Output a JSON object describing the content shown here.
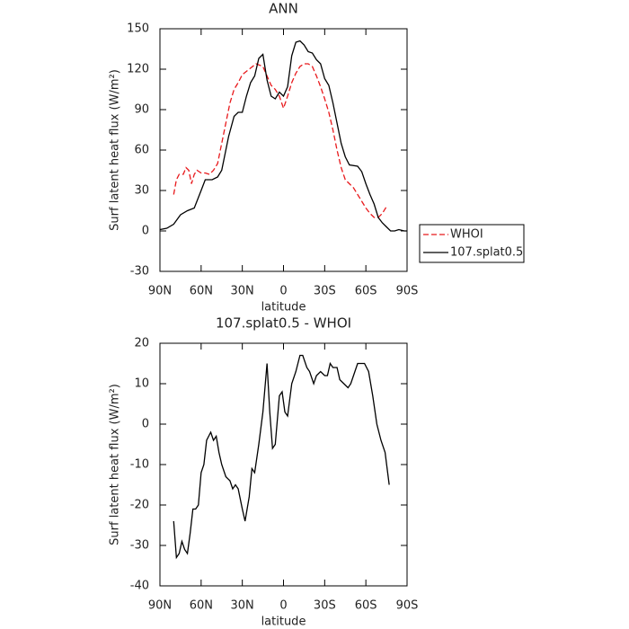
{
  "chart_data": [
    {
      "type": "line",
      "title": "ANN",
      "xlabel": "latitude",
      "ylabel": "Surf latent heat flux (W/m²)",
      "xlim": [
        90,
        -90
      ],
      "xticks": [
        {
          "value": 90,
          "label": "90N"
        },
        {
          "value": 60,
          "label": "60N"
        },
        {
          "value": 30,
          "label": "30N"
        },
        0,
        {
          "value": -30,
          "label": "30S"
        },
        {
          "value": -60,
          "label": "60S"
        },
        {
          "value": -90,
          "label": "90S"
        }
      ],
      "ylim": [
        -30,
        150
      ],
      "yticks": [
        -30,
        0,
        30,
        60,
        90,
        120,
        150
      ],
      "legend_position": "right",
      "series": [
        {
          "name": "WHOI",
          "color": "#e8191c",
          "linestyle": "dashed",
          "x": [
            80,
            78,
            76,
            73,
            71,
            69,
            67,
            65,
            63,
            60,
            57,
            54,
            51,
            48,
            45,
            42,
            39,
            36,
            33,
            30,
            25,
            20,
            15,
            12,
            9,
            6,
            3,
            0,
            -3,
            -6,
            -9,
            -12,
            -15,
            -18,
            -21,
            -24,
            -27,
            -30,
            -33,
            -36,
            -39,
            -42,
            -45,
            -48,
            -51,
            -54,
            -57,
            -60,
            -63,
            -66,
            -69,
            -72,
            -75
          ],
          "values": [
            27,
            38,
            42,
            42,
            47,
            45,
            35,
            42,
            45,
            43,
            43,
            42,
            45,
            50,
            65,
            80,
            95,
            105,
            110,
            116,
            120,
            124,
            122,
            115,
            108,
            105,
            100,
            91,
            100,
            110,
            117,
            122,
            124,
            124,
            122,
            115,
            107,
            98,
            88,
            75,
            60,
            47,
            38,
            35,
            32,
            27,
            22,
            17,
            13,
            10,
            10,
            13,
            18
          ]
        },
        {
          "name": "107.splat0.5",
          "color": "#000000",
          "linestyle": "solid",
          "x": [
            90,
            85,
            80,
            75,
            70,
            65,
            60,
            57,
            52,
            48,
            45,
            40,
            36,
            33,
            30,
            27,
            24,
            21,
            18,
            15,
            12,
            9,
            6,
            3,
            0,
            -3,
            -6,
            -9,
            -12,
            -15,
            -18,
            -21,
            -24,
            -27,
            -30,
            -33,
            -36,
            -39,
            -42,
            -45,
            -48,
            -54,
            -57,
            -60,
            -63,
            -66,
            -69,
            -72,
            -75,
            -78,
            -81,
            -84,
            -88,
            -90
          ],
          "values": [
            1,
            2,
            5,
            12,
            15,
            17,
            30,
            38,
            38,
            40,
            45,
            70,
            85,
            88,
            88,
            100,
            110,
            115,
            128,
            131,
            112,
            100,
            98,
            103,
            100,
            107,
            130,
            140,
            141,
            138,
            133,
            132,
            127,
            124,
            113,
            108,
            95,
            80,
            65,
            55,
            49,
            48,
            44,
            35,
            27,
            20,
            10,
            6,
            3,
            0,
            0,
            1,
            0,
            0
          ]
        }
      ]
    },
    {
      "type": "line",
      "title": "107.splat0.5 - WHOI",
      "xlabel": "latitude",
      "ylabel": "Surf latent heat flux (W/m²)",
      "xlim": [
        90,
        -90
      ],
      "xticks": [
        {
          "value": 90,
          "label": "90N"
        },
        {
          "value": 60,
          "label": "60N"
        },
        {
          "value": 30,
          "label": "30N"
        },
        0,
        {
          "value": -30,
          "label": "30S"
        },
        {
          "value": -60,
          "label": "60S"
        },
        {
          "value": -90,
          "label": "90S"
        }
      ],
      "ylim": [
        -40,
        20
      ],
      "yticks": [
        -40,
        -30,
        -20,
        -10,
        0,
        10,
        20
      ],
      "series": [
        {
          "color": "#000000",
          "linestyle": "solid",
          "x": [
            80,
            78,
            76,
            74,
            72,
            70,
            68,
            66,
            64,
            62,
            60,
            58,
            56,
            53,
            51,
            49,
            47,
            45,
            42,
            39,
            37,
            35,
            33,
            30,
            28,
            25,
            23,
            21,
            18,
            15,
            12,
            10,
            8,
            6,
            3,
            1,
            -1,
            -3,
            -6,
            -9,
            -12,
            -14,
            -17,
            -19,
            -22,
            -24,
            -27,
            -30,
            -32,
            -34,
            -36,
            -39,
            -41,
            -44,
            -47,
            -49,
            -51,
            -54,
            -56,
            -59,
            -62,
            -65,
            -68,
            -71,
            -74,
            -77
          ],
          "values": [
            -24,
            -33,
            -32,
            -29,
            -31,
            -32,
            -27,
            -21,
            -21,
            -20,
            -12,
            -10,
            -4,
            -2,
            -4,
            -3,
            -7,
            -10,
            -13,
            -14,
            -16,
            -15,
            -16,
            -21,
            -24,
            -18,
            -11,
            -12,
            -5,
            3,
            15,
            3,
            -6,
            -5,
            7,
            8,
            3,
            2,
            10,
            13,
            17,
            17,
            14,
            13,
            10,
            12,
            13,
            12,
            12,
            15,
            14,
            14,
            11,
            10,
            9,
            10,
            12,
            15,
            15,
            15,
            13,
            7,
            0,
            -4,
            -7,
            -15
          ]
        }
      ]
    }
  ]
}
